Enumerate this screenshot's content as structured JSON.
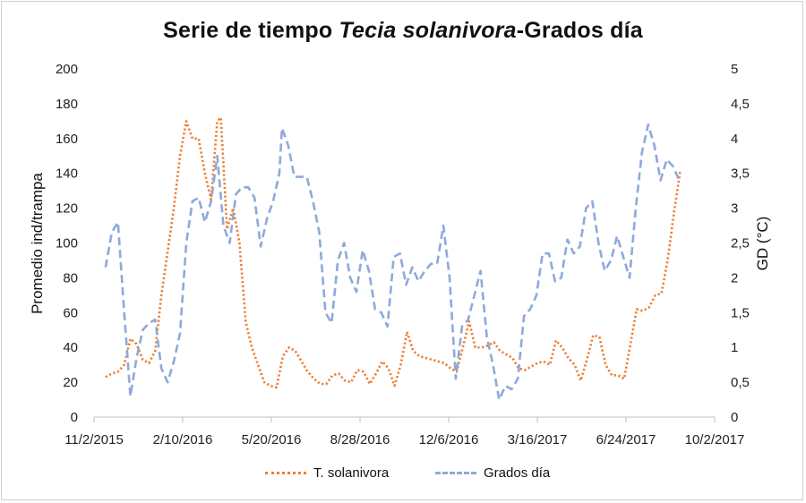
{
  "chart_data": {
    "type": "line",
    "title_part1": "Serie de tiempo ",
    "title_italic": "Tecia solanivora",
    "title_part2": "-Grados día",
    "ylabel_left": "Promedio ind/trampa",
    "ylabel_right": "GD (°C)",
    "ylim_left": [
      0,
      200
    ],
    "ylim_right": [
      0,
      5
    ],
    "y_ticks_left": [
      "0",
      "20",
      "40",
      "60",
      "80",
      "100",
      "120",
      "140",
      "160",
      "180",
      "200"
    ],
    "y_ticks_right": [
      "0",
      "0,5",
      "1",
      "1,5",
      "2",
      "2,5",
      "3",
      "3,5",
      "4",
      "4,5",
      "5"
    ],
    "x_tick_labels": [
      "11/2/2015",
      "2/10/2016",
      "5/20/2016",
      "8/28/2016",
      "12/6/2016",
      "3/16/2017",
      "6/24/2017",
      "10/2/2017"
    ],
    "x_range": [
      "2015-11-02",
      "2017-10-02"
    ],
    "legend_position": "bottom",
    "series": [
      {
        "name": "T. solanivora",
        "axis": "left",
        "color": "#ED7D31",
        "style": "dotted",
        "points": [
          [
            "2015-11-15",
            23
          ],
          [
            "2015-11-22",
            25
          ],
          [
            "2015-11-29",
            26
          ],
          [
            "2015-12-06",
            30
          ],
          [
            "2015-12-13",
            45
          ],
          [
            "2015-12-20",
            42
          ],
          [
            "2015-12-27",
            33
          ],
          [
            "2016-01-03",
            31
          ],
          [
            "2016-01-10",
            38
          ],
          [
            "2016-01-17",
            70
          ],
          [
            "2016-01-24",
            95
          ],
          [
            "2016-01-31",
            120
          ],
          [
            "2016-02-07",
            150
          ],
          [
            "2016-02-14",
            170
          ],
          [
            "2016-02-21",
            160
          ],
          [
            "2016-02-28",
            160
          ],
          [
            "2016-03-06",
            140
          ],
          [
            "2016-03-13",
            125
          ],
          [
            "2016-03-20",
            170
          ],
          [
            "2016-03-24",
            172
          ],
          [
            "2016-03-31",
            108
          ],
          [
            "2016-04-07",
            120
          ],
          [
            "2016-04-14",
            100
          ],
          [
            "2016-04-21",
            55
          ],
          [
            "2016-04-28",
            40
          ],
          [
            "2016-05-05",
            30
          ],
          [
            "2016-05-12",
            20
          ],
          [
            "2016-05-19",
            18
          ],
          [
            "2016-05-26",
            17
          ],
          [
            "2016-06-02",
            35
          ],
          [
            "2016-06-09",
            40
          ],
          [
            "2016-06-16",
            38
          ],
          [
            "2016-06-23",
            32
          ],
          [
            "2016-06-30",
            26
          ],
          [
            "2016-07-07",
            22
          ],
          [
            "2016-07-14",
            19
          ],
          [
            "2016-07-21",
            19
          ],
          [
            "2016-07-28",
            24
          ],
          [
            "2016-08-04",
            25
          ],
          [
            "2016-08-11",
            21
          ],
          [
            "2016-08-18",
            20
          ],
          [
            "2016-08-25",
            27
          ],
          [
            "2016-09-01",
            26
          ],
          [
            "2016-09-08",
            19
          ],
          [
            "2016-09-15",
            25
          ],
          [
            "2016-09-22",
            32
          ],
          [
            "2016-09-29",
            28
          ],
          [
            "2016-10-06",
            18
          ],
          [
            "2016-10-13",
            30
          ],
          [
            "2016-10-20",
            49
          ],
          [
            "2016-10-27",
            38
          ],
          [
            "2016-11-03",
            35
          ],
          [
            "2016-11-10",
            34
          ],
          [
            "2016-11-17",
            33
          ],
          [
            "2016-11-24",
            32
          ],
          [
            "2016-12-01",
            31
          ],
          [
            "2016-12-08",
            28
          ],
          [
            "2016-12-15",
            26
          ],
          [
            "2016-12-22",
            40
          ],
          [
            "2016-12-29",
            55
          ],
          [
            "2017-01-05",
            40
          ],
          [
            "2017-01-12",
            40
          ],
          [
            "2017-01-19",
            41
          ],
          [
            "2017-01-26",
            43
          ],
          [
            "2017-02-02",
            38
          ],
          [
            "2017-02-09",
            36
          ],
          [
            "2017-02-16",
            34
          ],
          [
            "2017-02-23",
            28
          ],
          [
            "2017-03-02",
            27
          ],
          [
            "2017-03-09",
            29
          ],
          [
            "2017-03-16",
            31
          ],
          [
            "2017-03-23",
            32
          ],
          [
            "2017-03-30",
            30
          ],
          [
            "2017-04-06",
            44
          ],
          [
            "2017-04-13",
            40
          ],
          [
            "2017-04-20",
            34
          ],
          [
            "2017-04-27",
            30
          ],
          [
            "2017-05-04",
            21
          ],
          [
            "2017-05-11",
            33
          ],
          [
            "2017-05-18",
            47
          ],
          [
            "2017-05-25",
            46
          ],
          [
            "2017-06-01",
            30
          ],
          [
            "2017-06-08",
            24
          ],
          [
            "2017-06-15",
            24
          ],
          [
            "2017-06-22",
            22
          ],
          [
            "2017-06-29",
            42
          ],
          [
            "2017-07-06",
            62
          ],
          [
            "2017-07-13",
            61
          ],
          [
            "2017-07-20",
            63
          ],
          [
            "2017-07-27",
            70
          ],
          [
            "2017-08-03",
            71
          ],
          [
            "2017-08-10",
            90
          ],
          [
            "2017-08-17",
            117
          ],
          [
            "2017-08-24",
            141
          ]
        ]
      },
      {
        "name": "Grados día",
        "axis": "right",
        "color": "#8EA9DB",
        "style": "dashed",
        "points": [
          [
            "2015-11-15",
            2.15
          ],
          [
            "2015-11-22",
            2.65
          ],
          [
            "2015-11-29",
            2.8
          ],
          [
            "2015-12-06",
            1.5
          ],
          [
            "2015-12-13",
            0.3
          ],
          [
            "2015-12-20",
            0.85
          ],
          [
            "2015-12-27",
            1.25
          ],
          [
            "2016-01-03",
            1.35
          ],
          [
            "2016-01-10",
            1.4
          ],
          [
            "2016-01-17",
            0.7
          ],
          [
            "2016-01-24",
            0.5
          ],
          [
            "2016-01-31",
            0.8
          ],
          [
            "2016-02-07",
            1.2
          ],
          [
            "2016-02-14",
            2.5
          ],
          [
            "2016-02-21",
            3.1
          ],
          [
            "2016-02-28",
            3.15
          ],
          [
            "2016-03-06",
            2.8
          ],
          [
            "2016-03-13",
            3.1
          ],
          [
            "2016-03-20",
            3.75
          ],
          [
            "2016-03-27",
            2.75
          ],
          [
            "2016-04-03",
            2.5
          ],
          [
            "2016-04-10",
            3.2
          ],
          [
            "2016-04-17",
            3.3
          ],
          [
            "2016-04-24",
            3.3
          ],
          [
            "2016-05-01",
            3.15
          ],
          [
            "2016-05-08",
            2.45
          ],
          [
            "2016-05-15",
            2.85
          ],
          [
            "2016-05-22",
            3.1
          ],
          [
            "2016-05-29",
            3.5
          ],
          [
            "2016-06-01",
            4.15
          ],
          [
            "2016-06-08",
            3.9
          ],
          [
            "2016-06-15",
            3.45
          ],
          [
            "2016-06-22",
            3.45
          ],
          [
            "2016-06-29",
            3.45
          ],
          [
            "2016-07-06",
            3.1
          ],
          [
            "2016-07-13",
            2.65
          ],
          [
            "2016-07-20",
            1.5
          ],
          [
            "2016-07-27",
            1.35
          ],
          [
            "2016-08-03",
            2.25
          ],
          [
            "2016-08-10",
            2.5
          ],
          [
            "2016-08-17",
            2.0
          ],
          [
            "2016-08-24",
            1.8
          ],
          [
            "2016-08-31",
            2.4
          ],
          [
            "2016-09-07",
            2.1
          ],
          [
            "2016-09-14",
            1.55
          ],
          [
            "2016-09-21",
            1.5
          ],
          [
            "2016-09-28",
            1.3
          ],
          [
            "2016-10-05",
            2.3
          ],
          [
            "2016-10-12",
            2.35
          ],
          [
            "2016-10-19",
            1.9
          ],
          [
            "2016-10-26",
            2.15
          ],
          [
            "2016-11-02",
            1.95
          ],
          [
            "2016-11-09",
            2.1
          ],
          [
            "2016-11-16",
            2.2
          ],
          [
            "2016-11-23",
            2.2
          ],
          [
            "2016-11-30",
            2.75
          ],
          [
            "2016-12-07",
            2.0
          ],
          [
            "2016-12-14",
            0.55
          ],
          [
            "2016-12-21",
            1.3
          ],
          [
            "2016-12-28",
            1.4
          ],
          [
            "2017-01-04",
            1.75
          ],
          [
            "2017-01-11",
            2.1
          ],
          [
            "2017-01-18",
            1.15
          ],
          [
            "2017-01-25",
            0.75
          ],
          [
            "2017-02-01",
            0.25
          ],
          [
            "2017-02-08",
            0.45
          ],
          [
            "2017-02-15",
            0.4
          ],
          [
            "2017-02-22",
            0.55
          ],
          [
            "2017-03-01",
            1.45
          ],
          [
            "2017-03-08",
            1.55
          ],
          [
            "2017-03-15",
            1.75
          ],
          [
            "2017-03-22",
            2.35
          ],
          [
            "2017-03-29",
            2.35
          ],
          [
            "2017-04-05",
            1.95
          ],
          [
            "2017-04-12",
            2.0
          ],
          [
            "2017-04-19",
            2.55
          ],
          [
            "2017-04-26",
            2.35
          ],
          [
            "2017-05-03",
            2.45
          ],
          [
            "2017-05-10",
            3.0
          ],
          [
            "2017-05-17",
            3.1
          ],
          [
            "2017-05-24",
            2.5
          ],
          [
            "2017-05-31",
            2.1
          ],
          [
            "2017-06-07",
            2.25
          ],
          [
            "2017-06-14",
            2.6
          ],
          [
            "2017-06-21",
            2.3
          ],
          [
            "2017-06-28",
            2.0
          ],
          [
            "2017-07-05",
            3.0
          ],
          [
            "2017-07-12",
            3.8
          ],
          [
            "2017-07-19",
            4.2
          ],
          [
            "2017-07-26",
            3.9
          ],
          [
            "2017-08-02",
            3.4
          ],
          [
            "2017-08-09",
            3.7
          ],
          [
            "2017-08-16",
            3.6
          ],
          [
            "2017-08-23",
            3.4
          ]
        ]
      }
    ]
  }
}
